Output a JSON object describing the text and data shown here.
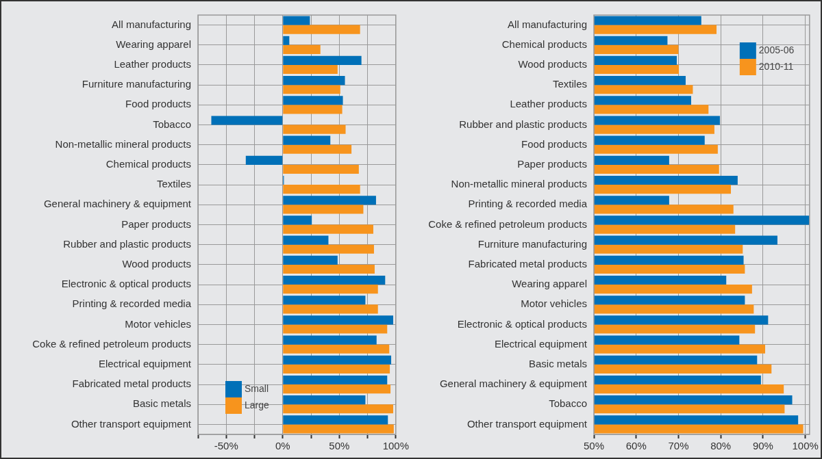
{
  "chart_data": [
    {
      "type": "bar",
      "orientation": "horizontal",
      "categories": [
        "All manufacturing",
        "Wearing apparel",
        "Leather products",
        "Furniture manufacturing",
        "Food products",
        "Tobacco",
        "Non-metallic mineral products",
        "Chemical products",
        "Textiles",
        "General machinery & equipment",
        "Paper products",
        "Rubber and plastic products",
        "Wood products",
        "Electronic & optical products",
        "Printing & recorded media",
        "Motor vehicles",
        "Coke & refined petroleum products",
        "Electrical equipment",
        "Fabricated metal products",
        "Basic metals",
        "Other transport equipment"
      ],
      "series": [
        {
          "name": "Small",
          "color": "#0070b8",
          "values": [
            24,
            5.8,
            69.6,
            55,
            53.2,
            -63.2,
            42.1,
            -32.7,
            1,
            82.5,
            25.7,
            40.4,
            48.5,
            90.6,
            73.1,
            97.7,
            83,
            95.9,
            92.4,
            73.1,
            93
          ]
        },
        {
          "name": "Large",
          "color": "#f7941d",
          "values": [
            68.4,
            33.3,
            48.5,
            50.9,
            52.6,
            55.6,
            60.8,
            67.3,
            68.4,
            71.3,
            80.1,
            80.7,
            81.3,
            84.2,
            84.2,
            92.4,
            94.2,
            94.7,
            95.3,
            97.7,
            98.2
          ]
        }
      ],
      "xlim": [
        -75,
        100
      ],
      "xticks": [
        {
          "value": -75,
          "label": null
        },
        {
          "value": -50,
          "label": "-50%"
        },
        {
          "value": -25,
          "label": null
        },
        {
          "value": 0,
          "label": "0%"
        },
        {
          "value": 25,
          "label": null
        },
        {
          "value": 50,
          "label": "50%"
        },
        {
          "value": 75,
          "label": null
        },
        {
          "value": 100,
          "label": "100%"
        }
      ],
      "grid": true,
      "legend": "bottom left"
    },
    {
      "type": "bar",
      "orientation": "horizontal",
      "categories": [
        "All manufacturing",
        "Chemical products",
        "Wood products",
        "Textiles",
        "Leather products",
        "Rubber and plastic products",
        "Food products",
        "Paper products",
        "Non-metallic mineral products",
        "Printing & recorded media",
        "Coke & refined petroleum products",
        "Furniture manufacturing",
        "Fabricated metal products",
        "Wearing apparel",
        "Motor vehicles",
        "Electronic & optical products",
        "Electrical equipment",
        "Basic metals",
        "General machinery & equipment",
        "Tobacco",
        "Other transport equipment"
      ],
      "series": [
        {
          "name": "2005-06",
          "color": "#0070b8",
          "values": [
            75.4,
            67.4,
            69.6,
            71.7,
            73,
            79.8,
            76.2,
            67.8,
            84,
            67.8,
            101,
            93.4,
            85.4,
            81.3,
            85.7,
            91.2,
            84.4,
            88.6,
            89.5,
            96.9,
            98.3
          ]
        },
        {
          "name": "2010-11",
          "color": "#f7941d",
          "values": [
            79,
            70,
            70.1,
            73.4,
            77.1,
            78.5,
            79.3,
            79.6,
            82.4,
            83,
            83.4,
            85.2,
            85.7,
            87.4,
            87.8,
            88.1,
            90.5,
            92,
            94.9,
            95.1,
            99.5
          ]
        }
      ],
      "xlim": [
        50,
        101
      ],
      "xticks": [
        {
          "value": 50,
          "label": "50%"
        },
        {
          "value": 60,
          "label": "60%"
        },
        {
          "value": 70,
          "label": "70%"
        },
        {
          "value": 80,
          "label": "80%"
        },
        {
          "value": 90,
          "label": "90%"
        },
        {
          "value": 100,
          "label": "100%"
        }
      ],
      "grid": true,
      "legend": "top right"
    }
  ]
}
